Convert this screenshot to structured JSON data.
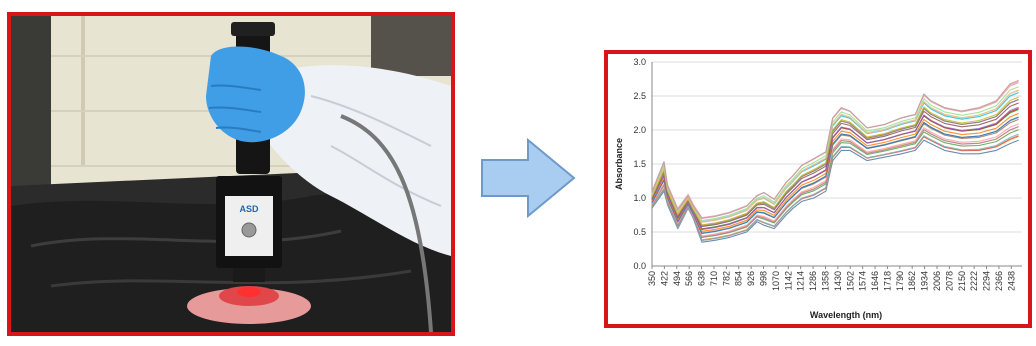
{
  "photo": {
    "probe_logo": "ASD",
    "colors": {
      "frame": "#d7151b",
      "glove": "#4aa3e8",
      "table": "#2a2a2a",
      "wall": "#e9e6d6",
      "sample": "#e9a0a0"
    }
  },
  "arrow": {
    "icon": "right-arrow-icon",
    "color": "#a9cdf0",
    "stroke": "#6d9ac8"
  },
  "chart_data": {
    "type": "line",
    "title": "",
    "xlabel": "Wavelength (nm)",
    "ylabel": "Absorbance",
    "ylim": [
      0,
      3
    ],
    "xlim": [
      350,
      2500
    ],
    "y_ticks": [
      "0.0",
      "0.5",
      "1.0",
      "1.5",
      "2.0",
      "2.5",
      "3.0"
    ],
    "x_ticks": [
      "350",
      "422",
      "494",
      "566",
      "638",
      "710",
      "782",
      "854",
      "926",
      "998",
      "1070",
      "1142",
      "1214",
      "1286",
      "1358",
      "1430",
      "1502",
      "1574",
      "1646",
      "1718",
      "1790",
      "1862",
      "1934",
      "2006",
      "2078",
      "2150",
      "2222",
      "2294",
      "2366",
      "2438"
    ],
    "grid": true,
    "envelope": {
      "x": [
        350,
        420,
        440,
        500,
        560,
        590,
        640,
        720,
        800,
        900,
        960,
        1000,
        1060,
        1130,
        1170,
        1220,
        1290,
        1360,
        1400,
        1450,
        1500,
        1600,
        1700,
        1800,
        1880,
        1930,
        1970,
        2050,
        2150,
        2250,
        2350,
        2430,
        2480
      ],
      "upper": [
        1.1,
        1.55,
        1.2,
        0.85,
        1.05,
        0.9,
        0.72,
        0.75,
        0.8,
        0.9,
        1.05,
        1.1,
        1.0,
        1.25,
        1.35,
        1.5,
        1.6,
        1.7,
        2.2,
        2.35,
        2.3,
        2.05,
        2.1,
        2.2,
        2.25,
        2.55,
        2.45,
        2.35,
        2.3,
        2.35,
        2.45,
        2.7,
        2.75
      ],
      "lower": [
        0.85,
        1.1,
        0.9,
        0.55,
        0.85,
        0.7,
        0.35,
        0.38,
        0.42,
        0.5,
        0.65,
        0.6,
        0.55,
        0.75,
        0.85,
        0.95,
        1.0,
        1.1,
        1.55,
        1.7,
        1.7,
        1.55,
        1.6,
        1.65,
        1.7,
        1.85,
        1.8,
        1.7,
        1.65,
        1.65,
        1.7,
        1.8,
        1.85
      ]
    },
    "series_count": 26,
    "series_colors": [
      "#4e79a7",
      "#f28e2b",
      "#e15759",
      "#76b7b2",
      "#59a14f",
      "#edc948",
      "#b07aa1",
      "#ff9da7",
      "#9c755f",
      "#bab0ac",
      "#1f77b4",
      "#ff7f0e",
      "#2ca02c",
      "#d62728",
      "#9467bd",
      "#8c564b",
      "#e377c2",
      "#7f7f7f",
      "#bcbd22",
      "#17becf",
      "#aec7e8",
      "#ffbb78",
      "#98df8a",
      "#ff9896",
      "#c5b0d5",
      "#c49c94"
    ]
  }
}
